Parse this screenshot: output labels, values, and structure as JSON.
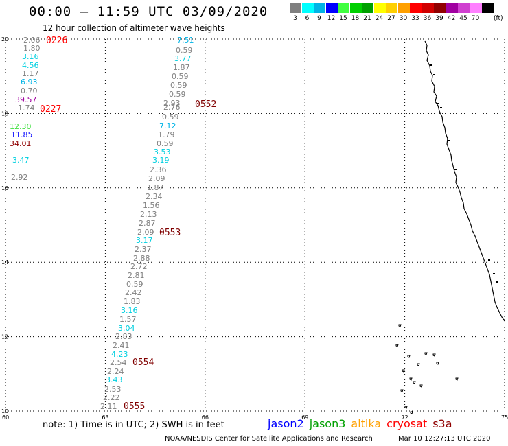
{
  "header": {
    "title": "00:00 – 11:59 UTC 03/09/2020",
    "subtitle": "12 hour collection of altimeter wave heights"
  },
  "legend": {
    "swatches": [
      {
        "color": "#7f7f7f",
        "label": "3"
      },
      {
        "color": "#00ffff",
        "label": "6"
      },
      {
        "color": "#00b4e6",
        "label": "9"
      },
      {
        "color": "#0000ff",
        "label": "12"
      },
      {
        "color": "#40ff40",
        "label": "15"
      },
      {
        "color": "#00d000",
        "label": "18"
      },
      {
        "color": "#00a000",
        "label": "21"
      },
      {
        "color": "#ffff00",
        "label": "24"
      },
      {
        "color": "#ffd000",
        "label": "27"
      },
      {
        "color": "#ffa000",
        "label": "30"
      },
      {
        "color": "#ff0000",
        "label": "33"
      },
      {
        "color": "#d00000",
        "label": "36"
      },
      {
        "color": "#900000",
        "label": "39"
      },
      {
        "color": "#a000a0",
        "label": "42"
      },
      {
        "color": "#d040d0",
        "label": "45"
      },
      {
        "color": "#ff80ff",
        "label": "70"
      },
      {
        "color": "#000000",
        "label": ""
      }
    ],
    "unit": "(ft)"
  },
  "axes": {
    "lon_min": 60,
    "lon_max": 75,
    "lat_min": 10,
    "lat_max": 20,
    "x_ticks": [
      "60",
      "63",
      "66",
      "69",
      "72",
      "75"
    ],
    "y_ticks": [
      "10",
      "12",
      "14",
      "16",
      "18",
      "20"
    ]
  },
  "measurements": [
    {
      "v": "2.06",
      "c": "#7f7f7f"
    },
    {
      "v": "1.80",
      "c": "#7f7f7f"
    },
    {
      "v": "3.16",
      "c": "#00d0e0"
    },
    {
      "v": "4.56",
      "c": "#00d0e0"
    },
    {
      "v": "1.17",
      "c": "#7f7f7f"
    },
    {
      "v": "6.93",
      "c": "#00b4e6"
    },
    {
      "v": "0.70",
      "c": "#7f7f7f"
    },
    {
      "v": "39.57",
      "c": "#a000a0"
    },
    {
      "v": "1.74",
      "c": "#7f7f7f"
    },
    {
      "v": "12.30",
      "c": "#40e040"
    },
    {
      "v": "11.85",
      "c": "#0000ff"
    },
    {
      "v": "34.01",
      "c": "#900000"
    },
    {
      "v": "3.47",
      "c": "#00d0e0"
    },
    {
      "v": "2.92",
      "c": "#7f7f7f"
    },
    {
      "v": "7.51",
      "c": "#00b4e6"
    },
    {
      "v": "0.59",
      "c": "#7f7f7f"
    },
    {
      "v": "3.77",
      "c": "#00d0e0"
    },
    {
      "v": "1.87",
      "c": "#7f7f7f"
    },
    {
      "v": "0.59",
      "c": "#7f7f7f"
    },
    {
      "v": "0.59",
      "c": "#7f7f7f"
    },
    {
      "v": "0.59",
      "c": "#7f7f7f"
    },
    {
      "v": "2.93",
      "c": "#7f7f7f"
    },
    {
      "v": "2.76",
      "c": "#7f7f7f"
    },
    {
      "v": "0.59",
      "c": "#7f7f7f"
    },
    {
      "v": "7.12",
      "c": "#00b4e6"
    },
    {
      "v": "1.79",
      "c": "#7f7f7f"
    },
    {
      "v": "0.59",
      "c": "#7f7f7f"
    },
    {
      "v": "3.53",
      "c": "#00d0e0"
    },
    {
      "v": "3.19",
      "c": "#00d0e0"
    },
    {
      "v": "2.36",
      "c": "#7f7f7f"
    },
    {
      "v": "2.09",
      "c": "#7f7f7f"
    },
    {
      "v": "1.87",
      "c": "#7f7f7f"
    },
    {
      "v": "2.34",
      "c": "#7f7f7f"
    },
    {
      "v": "1.56",
      "c": "#7f7f7f"
    },
    {
      "v": "2.13",
      "c": "#7f7f7f"
    },
    {
      "v": "2.87",
      "c": "#7f7f7f"
    },
    {
      "v": "2.09",
      "c": "#7f7f7f"
    },
    {
      "v": "3.17",
      "c": "#00d0e0"
    },
    {
      "v": "2.37",
      "c": "#7f7f7f"
    },
    {
      "v": "2.88",
      "c": "#7f7f7f"
    },
    {
      "v": "2.72",
      "c": "#7f7f7f"
    },
    {
      "v": "2.81",
      "c": "#7f7f7f"
    },
    {
      "v": "0.59",
      "c": "#7f7f7f"
    },
    {
      "v": "2.42",
      "c": "#7f7f7f"
    },
    {
      "v": "1.83",
      "c": "#7f7f7f"
    },
    {
      "v": "3.16",
      "c": "#00d0e0"
    },
    {
      "v": "1.57",
      "c": "#7f7f7f"
    },
    {
      "v": "3.04",
      "c": "#00d0e0"
    },
    {
      "v": "2.83",
      "c": "#7f7f7f"
    },
    {
      "v": "2.41",
      "c": "#7f7f7f"
    },
    {
      "v": "4.23",
      "c": "#00d0e0"
    },
    {
      "v": "2.54",
      "c": "#7f7f7f"
    },
    {
      "v": "2.24",
      "c": "#7f7f7f"
    },
    {
      "v": "3.43",
      "c": "#00d0e0"
    },
    {
      "v": "2.53",
      "c": "#7f7f7f"
    },
    {
      "v": "2.22",
      "c": "#7f7f7f"
    },
    {
      "v": "2.11",
      "c": "#7f7f7f"
    }
  ],
  "time_labels": [
    {
      "t": "0226",
      "c": "#ff0000"
    },
    {
      "t": "0227",
      "c": "#ff0000"
    },
    {
      "t": "0552",
      "c": "#800000"
    },
    {
      "t": "0553",
      "c": "#800000"
    },
    {
      "t": "0554",
      "c": "#800000"
    },
    {
      "t": "0555",
      "c": "#800000"
    }
  ],
  "note": "note: 1) Time is in UTC; 2) SWH is in feet",
  "satellites": [
    {
      "name": "jason2",
      "color": "#0000ff"
    },
    {
      "name": "jason3",
      "color": "#00a000"
    },
    {
      "name": "altika",
      "color": "#ffa000"
    },
    {
      "name": "cryosat",
      "color": "#ff0000"
    },
    {
      "name": "s3a",
      "color": "#900000"
    }
  ],
  "footer": {
    "credit": "NOAA/NESDIS Center for Satellite Applications and Research",
    "timestamp": "Mar 10 12:27:13 UTC 2020"
  }
}
